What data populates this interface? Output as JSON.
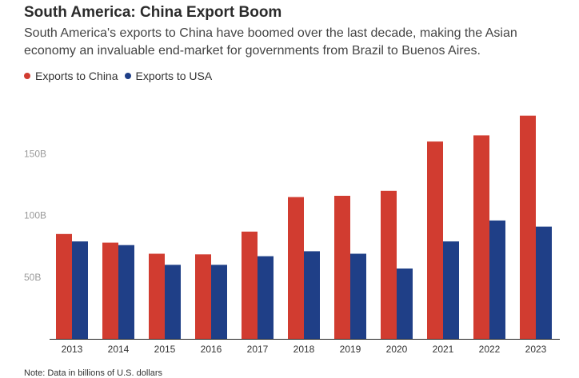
{
  "header": {
    "title": "South America: China Export Boom",
    "subtitle": "South America's exports to China have boomed over the last decade, making the Asian economy an invaluable end-market for governments from Brazil to Buenos Aires."
  },
  "note": "Note: Data in billions of U.S. dollars",
  "chart_data": {
    "type": "bar",
    "categories": [
      "2013",
      "2014",
      "2015",
      "2016",
      "2017",
      "2018",
      "2019",
      "2020",
      "2021",
      "2022",
      "2023"
    ],
    "series": [
      {
        "name": "Exports to China",
        "color": "#d13c30",
        "values": [
          85,
          78,
          69,
          68.5,
          87,
          115,
          116,
          120,
          160,
          165,
          181
        ]
      },
      {
        "name": "Exports to USA",
        "color": "#1f3f87",
        "values": [
          79,
          76,
          60,
          60,
          67,
          71,
          69,
          57,
          79,
          96,
          91
        ]
      }
    ],
    "yticks": [
      {
        "value": 50,
        "label": "50B"
      },
      {
        "value": 100,
        "label": "100B"
      },
      {
        "value": 150,
        "label": "150B"
      }
    ],
    "ylim": [
      0,
      185
    ],
    "legend_position": "top-left",
    "grid": false
  }
}
